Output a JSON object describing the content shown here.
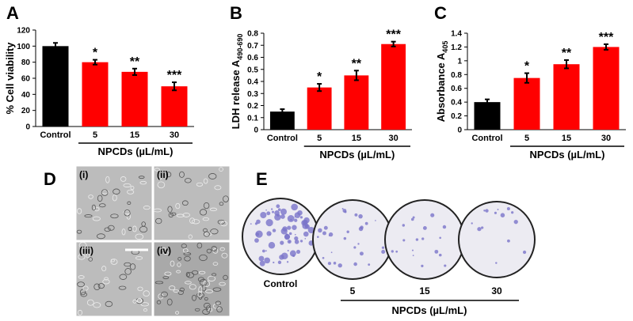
{
  "chart_data": [
    {
      "type": "bar",
      "panel_label": "A",
      "ylabel": "% Cell viability",
      "xlabel": "NPCDs (µL/mL)",
      "categories": [
        "Control",
        "5",
        "15",
        "30"
      ],
      "values": [
        100,
        80,
        68,
        50
      ],
      "errors": [
        4,
        3,
        4,
        5
      ],
      "annotations": [
        null,
        "*",
        "**",
        "***"
      ],
      "colors": [
        "#000000",
        "#ff0000",
        "#ff0000",
        "#ff0000"
      ],
      "ylim": [
        0,
        120
      ],
      "yticks": [
        0,
        20,
        40,
        60,
        80,
        100,
        120
      ]
    },
    {
      "type": "bar",
      "panel_label": "B",
      "ylabel": "LDH release A",
      "ylabel_sub": "490-690",
      "xlabel": "NPCDs (µL/mL)",
      "categories": [
        "Control",
        "5",
        "15",
        "30"
      ],
      "values": [
        0.15,
        0.35,
        0.45,
        0.71
      ],
      "errors": [
        0.02,
        0.03,
        0.04,
        0.02
      ],
      "annotations": [
        null,
        "*",
        "**",
        "***"
      ],
      "colors": [
        "#000000",
        "#ff0000",
        "#ff0000",
        "#ff0000"
      ],
      "ylim": [
        0,
        0.8
      ],
      "yticks": [
        0,
        0.1,
        0.2,
        0.3,
        0.4,
        0.5,
        0.6,
        0.7,
        0.8
      ]
    },
    {
      "type": "bar",
      "panel_label": "C",
      "ylabel": "Absorbance A",
      "ylabel_sub": "405",
      "xlabel": "NPCDs (µL/mL)",
      "categories": [
        "Control",
        "5",
        "15",
        "30"
      ],
      "values": [
        0.4,
        0.75,
        0.95,
        1.2
      ],
      "errors": [
        0.04,
        0.07,
        0.06,
        0.04
      ],
      "annotations": [
        null,
        "*",
        "**",
        "***"
      ],
      "colors": [
        "#000000",
        "#ff0000",
        "#ff0000",
        "#ff0000"
      ],
      "ylim": [
        0,
        1.4
      ],
      "yticks": [
        0,
        0.2,
        0.4,
        0.6,
        0.8,
        1,
        1.2,
        1.4
      ]
    }
  ],
  "panel_d": {
    "panel_label": "D",
    "images": [
      "(i)",
      "(ii)",
      "(iii)",
      "(iv)"
    ]
  },
  "panel_e": {
    "panel_label": "E",
    "labels": [
      "Control",
      "5",
      "15",
      "30"
    ],
    "xlabel": "NPCDs (µL/mL)"
  }
}
